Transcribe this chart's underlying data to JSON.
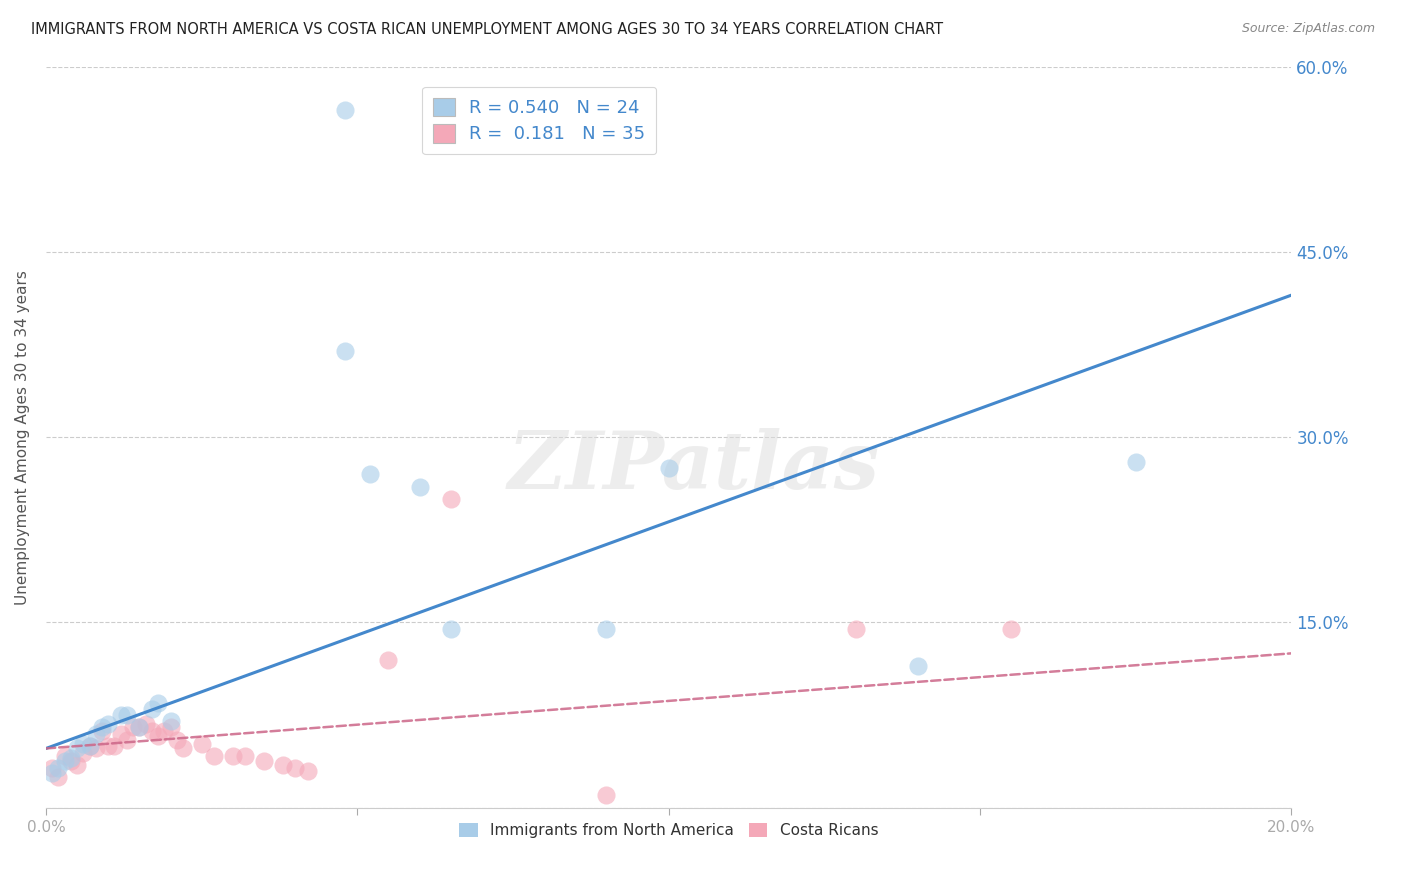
{
  "title": "IMMIGRANTS FROM NORTH AMERICA VS COSTA RICAN UNEMPLOYMENT AMONG AGES 30 TO 34 YEARS CORRELATION CHART",
  "source": "Source: ZipAtlas.com",
  "ylabel": "Unemployment Among Ages 30 to 34 years",
  "legend_label_blue": "Immigrants from North America",
  "legend_label_pink": "Costa Ricans",
  "R_blue": 0.54,
  "N_blue": 24,
  "R_pink": 0.181,
  "N_pink": 35,
  "xlim": [
    0.0,
    0.2
  ],
  "ylim": [
    0.0,
    0.6
  ],
  "xticks": [
    0.0,
    0.05,
    0.1,
    0.15,
    0.2
  ],
  "yticks": [
    0.0,
    0.15,
    0.3,
    0.45,
    0.6
  ],
  "xticklabels": [
    "0.0%",
    "",
    "",
    "",
    "20.0%"
  ],
  "yticklabels": [
    "",
    "15.0%",
    "30.0%",
    "45.0%",
    "60.0%"
  ],
  "blue_color": "#a8cce8",
  "blue_edge_color": "#a8cce8",
  "blue_line_color": "#4488cc",
  "pink_color": "#f4a8b8",
  "pink_edge_color": "#f4a8b8",
  "pink_line_color": "#cc6688",
  "watermark": "ZIPatlas",
  "blue_line_x0": 0.0,
  "blue_line_y0": 0.048,
  "blue_line_x1": 0.2,
  "blue_line_y1": 0.415,
  "pink_line_x0": 0.0,
  "pink_line_y0": 0.048,
  "pink_line_x1": 0.2,
  "pink_line_y1": 0.125,
  "blue_x": [
    0.001,
    0.002,
    0.003,
    0.004,
    0.005,
    0.006,
    0.007,
    0.008,
    0.009,
    0.01,
    0.012,
    0.013,
    0.015,
    0.017,
    0.018,
    0.02,
    0.048,
    0.052,
    0.06,
    0.065,
    0.09,
    0.1,
    0.14,
    0.175
  ],
  "blue_y": [
    0.028,
    0.032,
    0.038,
    0.04,
    0.048,
    0.052,
    0.05,
    0.06,
    0.065,
    0.068,
    0.075,
    0.075,
    0.065,
    0.08,
    0.085,
    0.07,
    0.37,
    0.27,
    0.26,
    0.145,
    0.145,
    0.275,
    0.115,
    0.28
  ],
  "blue_outlier_x": [
    0.048
  ],
  "blue_outlier_y": [
    0.565
  ],
  "pink_x": [
    0.001,
    0.002,
    0.003,
    0.004,
    0.005,
    0.006,
    0.007,
    0.008,
    0.009,
    0.01,
    0.011,
    0.012,
    0.013,
    0.014,
    0.015,
    0.016,
    0.017,
    0.018,
    0.019,
    0.02,
    0.021,
    0.022,
    0.025,
    0.027,
    0.03,
    0.032,
    0.035,
    0.038,
    0.04,
    0.042,
    0.055,
    0.065,
    0.09,
    0.13,
    0.155
  ],
  "pink_y": [
    0.032,
    0.025,
    0.042,
    0.038,
    0.035,
    0.044,
    0.05,
    0.048,
    0.062,
    0.05,
    0.05,
    0.06,
    0.055,
    0.065,
    0.065,
    0.068,
    0.062,
    0.058,
    0.062,
    0.065,
    0.055,
    0.048,
    0.052,
    0.042,
    0.042,
    0.042,
    0.038,
    0.035,
    0.032,
    0.03,
    0.12,
    0.25,
    0.01,
    0.145,
    0.145
  ],
  "background_color": "#ffffff",
  "grid_color": "#cccccc",
  "tick_color": "#aaaaaa",
  "axis_label_color": "#555555"
}
